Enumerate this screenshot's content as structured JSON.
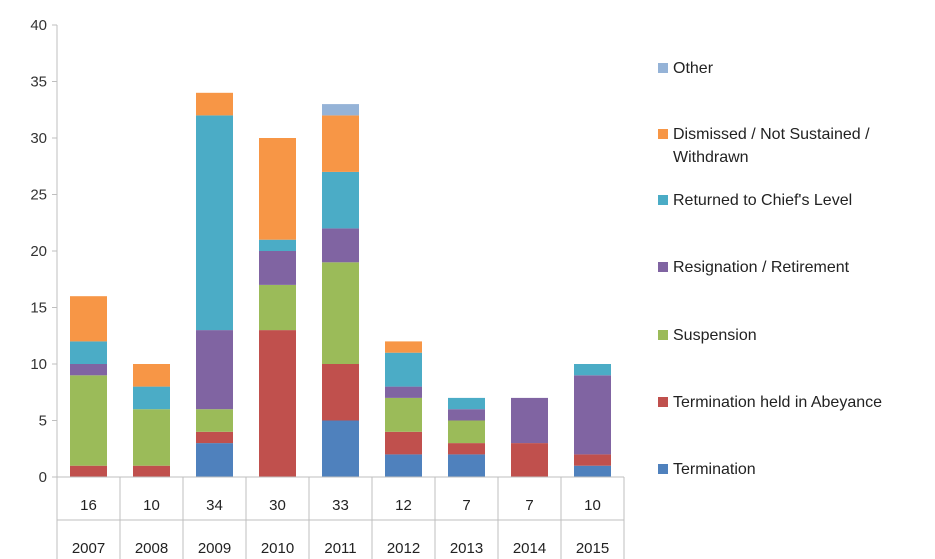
{
  "chart_data": {
    "type": "bar",
    "stacked": true,
    "categories": [
      "2007",
      "2008",
      "2009",
      "2010",
      "2011",
      "2012",
      "2013",
      "2014",
      "2015"
    ],
    "totals": [
      "16",
      "10",
      "34",
      "30",
      "33",
      "12",
      "7",
      "7",
      "10"
    ],
    "ylim": [
      0,
      40
    ],
    "yticks": [
      0,
      5,
      10,
      15,
      20,
      25,
      30,
      35,
      40
    ],
    "grid": false,
    "legend": "right",
    "series": [
      {
        "name": "Termination",
        "color": "#4f81bd",
        "values": [
          0,
          0,
          3,
          0,
          5,
          2,
          2,
          0,
          1
        ]
      },
      {
        "name": "Termination held in Abeyance",
        "color": "#c0504d",
        "values": [
          1,
          1,
          1,
          13,
          5,
          2,
          1,
          3,
          1
        ]
      },
      {
        "name": "Suspension",
        "color": "#9bbb59",
        "values": [
          8,
          5,
          2,
          4,
          9,
          3,
          2,
          0,
          0
        ]
      },
      {
        "name": "Resignation / Retirement",
        "color": "#8064a2",
        "values": [
          1,
          0,
          7,
          3,
          3,
          1,
          1,
          4,
          7
        ]
      },
      {
        "name": "Returned to Chief's Level",
        "color": "#4bacc6",
        "values": [
          2,
          2,
          19,
          1,
          5,
          3,
          1,
          0,
          1
        ]
      },
      {
        "name": "Dismissed / Not Sustained / Withdrawn",
        "color": "#f79646",
        "values": [
          4,
          2,
          2,
          9,
          5,
          1,
          0,
          0,
          0
        ]
      },
      {
        "name": "Other",
        "color": "#95b3d7",
        "values": [
          0,
          0,
          0,
          0,
          1,
          0,
          0,
          0,
          0
        ]
      }
    ]
  }
}
